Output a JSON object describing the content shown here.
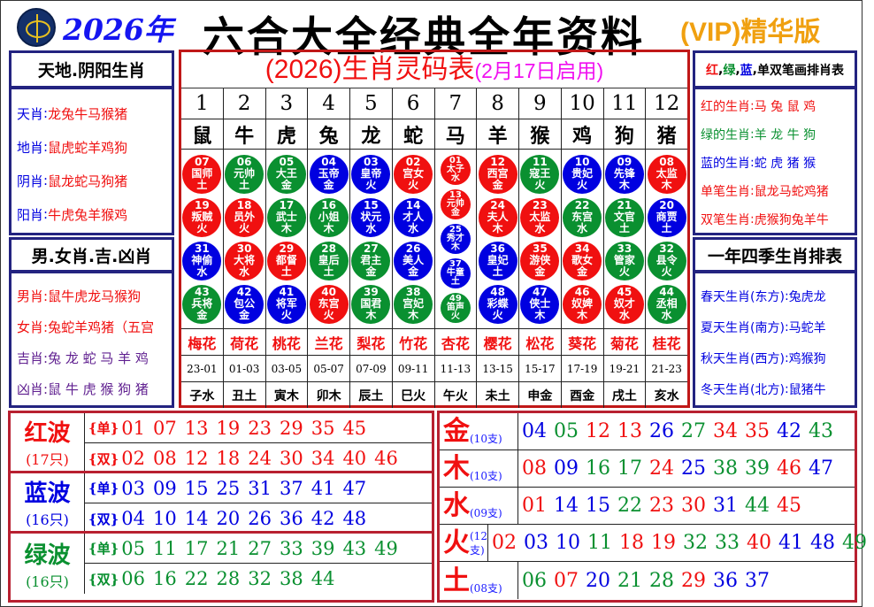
{
  "header": {
    "logo": "HKJC",
    "year": "2026年",
    "title": "六合大全经典全年资料",
    "vip": "(VIP)精华版"
  },
  "colors": {
    "red": "#f01010",
    "green": "#0a9030",
    "blue": "#0000e0",
    "purple": "#602090"
  },
  "left": {
    "box1": {
      "title": "天地.阴阳生肖",
      "items": [
        {
          "k": "天肖",
          "v": "龙兔牛马猴猪"
        },
        {
          "k": "地肖",
          "v": "鼠虎蛇羊鸡狗"
        },
        {
          "k": "阴肖",
          "v": "鼠龙蛇马狗猪"
        },
        {
          "k": "阳肖",
          "v": "牛虎兔羊猴鸡"
        }
      ]
    },
    "box2": {
      "title": "男.女肖.吉.凶肖",
      "items": [
        {
          "k": "男肖",
          "v": "鼠牛虎龙马猴狗"
        },
        {
          "k": "女肖",
          "v": "兔蛇羊鸡猪（五宫"
        },
        {
          "k": "吉肖",
          "v": "兔 龙 蛇 马 羊 鸡"
        },
        {
          "k": "凶肖",
          "v": "鼠 牛 虎 猴 狗 猪"
        }
      ]
    }
  },
  "right": {
    "box1": {
      "title_parts": [
        "红",
        "绿",
        "蓝",
        "单双笔画排肖表"
      ],
      "items": [
        {
          "k": "红的生肖",
          "v": "马 兔 鼠 鸡"
        },
        {
          "k": "绿的生肖",
          "v": "羊 龙 牛 狗"
        },
        {
          "k": "蓝的生肖",
          "v": "蛇 虎 猪 猴"
        },
        {
          "k": "单笔生肖",
          "v": "鼠龙马蛇鸡猪"
        },
        {
          "k": "双笔生肖",
          "v": "虎猴狗兔羊牛"
        }
      ]
    },
    "box2": {
      "title": "一年四季生肖排表",
      "items": [
        {
          "k": "春天生肖(东方)",
          "v": "兔虎龙"
        },
        {
          "k": "夏天生肖(南方)",
          "v": "马蛇羊"
        },
        {
          "k": "秋天生肖(西方)",
          "v": "鸡猴狗"
        },
        {
          "k": "冬天生肖(北方)",
          "v": "鼠猪牛"
        }
      ]
    }
  },
  "center": {
    "title": "(2026)生肖灵码表",
    "subtitle": "(2月17日启用)",
    "columns": [
      {
        "no": "1",
        "zodiac": "鼠",
        "flower": "梅花",
        "time": "23-01",
        "branch": "子水",
        "balls": [
          [
            "07",
            "国师",
            "土",
            "r"
          ],
          [
            "19",
            "叛贼",
            "火",
            "r"
          ],
          [
            "31",
            "神偷",
            "水",
            "b"
          ],
          [
            "43",
            "兵将",
            "金",
            "g"
          ]
        ]
      },
      {
        "no": "2",
        "zodiac": "牛",
        "flower": "荷花",
        "time": "01-03",
        "branch": "丑土",
        "balls": [
          [
            "06",
            "元帅",
            "土",
            "g"
          ],
          [
            "18",
            "员外",
            "火",
            "r"
          ],
          [
            "30",
            "大将",
            "水",
            "r"
          ],
          [
            "42",
            "包公",
            "金",
            "b"
          ]
        ]
      },
      {
        "no": "3",
        "zodiac": "虎",
        "flower": "桃花",
        "time": "03-05",
        "branch": "寅木",
        "balls": [
          [
            "05",
            "大王",
            "金",
            "g"
          ],
          [
            "17",
            "武士",
            "木",
            "g"
          ],
          [
            "29",
            "都督",
            "土",
            "r"
          ],
          [
            "41",
            "将军",
            "火",
            "b"
          ]
        ]
      },
      {
        "no": "4",
        "zodiac": "兔",
        "flower": "兰花",
        "time": "05-07",
        "branch": "卯木",
        "balls": [
          [
            "04",
            "玉帝",
            "金",
            "b"
          ],
          [
            "16",
            "小姐",
            "木",
            "g"
          ],
          [
            "28",
            "皇后",
            "土",
            "g"
          ],
          [
            "40",
            "东宫",
            "火",
            "r"
          ]
        ]
      },
      {
        "no": "5",
        "zodiac": "龙",
        "flower": "梨花",
        "time": "07-09",
        "branch": "辰土",
        "balls": [
          [
            "03",
            "皇帝",
            "火",
            "b"
          ],
          [
            "15",
            "状元",
            "水",
            "b"
          ],
          [
            "27",
            "君主",
            "金",
            "g"
          ],
          [
            "39",
            "国君",
            "木",
            "g"
          ]
        ]
      },
      {
        "no": "6",
        "zodiac": "蛇",
        "flower": "竹花",
        "time": "09-11",
        "branch": "巳火",
        "balls": [
          [
            "02",
            "宫女",
            "火",
            "r"
          ],
          [
            "14",
            "才人",
            "水",
            "b"
          ],
          [
            "26",
            "美人",
            "金",
            "b"
          ],
          [
            "38",
            "宫妃",
            "木",
            "g"
          ]
        ]
      },
      {
        "no": "7",
        "zodiac": "马",
        "flower": "杏花",
        "time": "11-13",
        "branch": "午火",
        "balls": [
          [
            "01",
            "太子",
            "水",
            "r"
          ],
          [
            "13",
            "元帅",
            "金",
            "r"
          ],
          [
            "25",
            "秀才",
            "木",
            "b"
          ],
          [
            "37",
            "牛童",
            "土",
            "b"
          ],
          [
            "49",
            "笛声",
            "火",
            "g"
          ]
        ]
      },
      {
        "no": "8",
        "zodiac": "羊",
        "flower": "樱花",
        "time": "13-15",
        "branch": "未土",
        "balls": [
          [
            "12",
            "西宫",
            "金",
            "r"
          ],
          [
            "24",
            "夫人",
            "木",
            "r"
          ],
          [
            "36",
            "皇妃",
            "土",
            "b"
          ],
          [
            "48",
            "彩蝶",
            "火",
            "b"
          ]
        ]
      },
      {
        "no": "9",
        "zodiac": "猴",
        "flower": "松花",
        "time": "15-17",
        "branch": "申金",
        "balls": [
          [
            "11",
            "寇王",
            "火",
            "g"
          ],
          [
            "23",
            "太监",
            "水",
            "r"
          ],
          [
            "35",
            "游侠",
            "金",
            "r"
          ],
          [
            "47",
            "侠士",
            "木",
            "b"
          ]
        ]
      },
      {
        "no": "10",
        "zodiac": "鸡",
        "flower": "葵花",
        "time": "17-19",
        "branch": "酉金",
        "balls": [
          [
            "10",
            "贵妃",
            "火",
            "b"
          ],
          [
            "22",
            "东宫",
            "水",
            "g"
          ],
          [
            "34",
            "歌女",
            "金",
            "r"
          ],
          [
            "46",
            "奴婢",
            "木",
            "r"
          ]
        ]
      },
      {
        "no": "11",
        "zodiac": "狗",
        "flower": "菊花",
        "time": "19-21",
        "branch": "戌土",
        "balls": [
          [
            "09",
            "先锋",
            "木",
            "b"
          ],
          [
            "21",
            "文官",
            "土",
            "g"
          ],
          [
            "33",
            "管家",
            "火",
            "g"
          ],
          [
            "45",
            "奴才",
            "水",
            "r"
          ]
        ]
      },
      {
        "no": "12",
        "zodiac": "猪",
        "flower": "桂花",
        "time": "21-23",
        "branch": "亥水",
        "balls": [
          [
            "08",
            "太监",
            "木",
            "r"
          ],
          [
            "20",
            "商贾",
            "土",
            "b"
          ],
          [
            "32",
            "县令",
            "火",
            "g"
          ],
          [
            "44",
            "丞相",
            "水",
            "g"
          ]
        ]
      }
    ]
  },
  "waves": [
    {
      "name": "红波",
      "count": "(17只)",
      "color": "red",
      "rows": [
        {
          "tag": "{单}",
          "nums": [
            "01",
            "07",
            "13",
            "19",
            "23",
            "29",
            "35",
            "45"
          ]
        },
        {
          "tag": "{双}",
          "nums": [
            "02",
            "08",
            "12",
            "18",
            "24",
            "30",
            "34",
            "40",
            "46"
          ]
        }
      ]
    },
    {
      "name": "蓝波",
      "count": "(16只)",
      "color": "blue",
      "rows": [
        {
          "tag": "{单}",
          "nums": [
            "03",
            "09",
            "15",
            "25",
            "31",
            "37",
            "41",
            "47"
          ]
        },
        {
          "tag": "{双}",
          "nums": [
            "04",
            "10",
            "14",
            "20",
            "26",
            "36",
            "42",
            "48"
          ]
        }
      ]
    },
    {
      "name": "绿波",
      "count": "(16只)",
      "color": "green",
      "rows": [
        {
          "tag": "{单}",
          "nums": [
            "05",
            "11",
            "17",
            "21",
            "27",
            "33",
            "39",
            "43",
            "49"
          ]
        },
        {
          "tag": "{双}",
          "nums": [
            "06",
            "16",
            "22",
            "28",
            "32",
            "38",
            "44"
          ]
        }
      ]
    }
  ],
  "elements": [
    {
      "name": "金",
      "count": "(10支)",
      "nums": [
        "04",
        "05",
        "12",
        "13",
        "26",
        "27",
        "34",
        "35",
        "42",
        "43"
      ]
    },
    {
      "name": "木",
      "count": "(10支)",
      "nums": [
        "08",
        "09",
        "16",
        "17",
        "24",
        "25",
        "38",
        "39",
        "46",
        "47"
      ]
    },
    {
      "name": "水",
      "count": "(09支)",
      "nums": [
        "01",
        "14",
        "15",
        "22",
        "23",
        "30",
        "31",
        "44",
        "45"
      ]
    },
    {
      "name": "火",
      "count": "(12支)",
      "nums": [
        "02",
        "03",
        "10",
        "11",
        "18",
        "19",
        "32",
        "33",
        "40",
        "41",
        "48",
        "49"
      ]
    },
    {
      "name": "土",
      "count": "(08支)",
      "nums": [
        "06",
        "07",
        "20",
        "21",
        "28",
        "29",
        "36",
        "37"
      ]
    }
  ]
}
